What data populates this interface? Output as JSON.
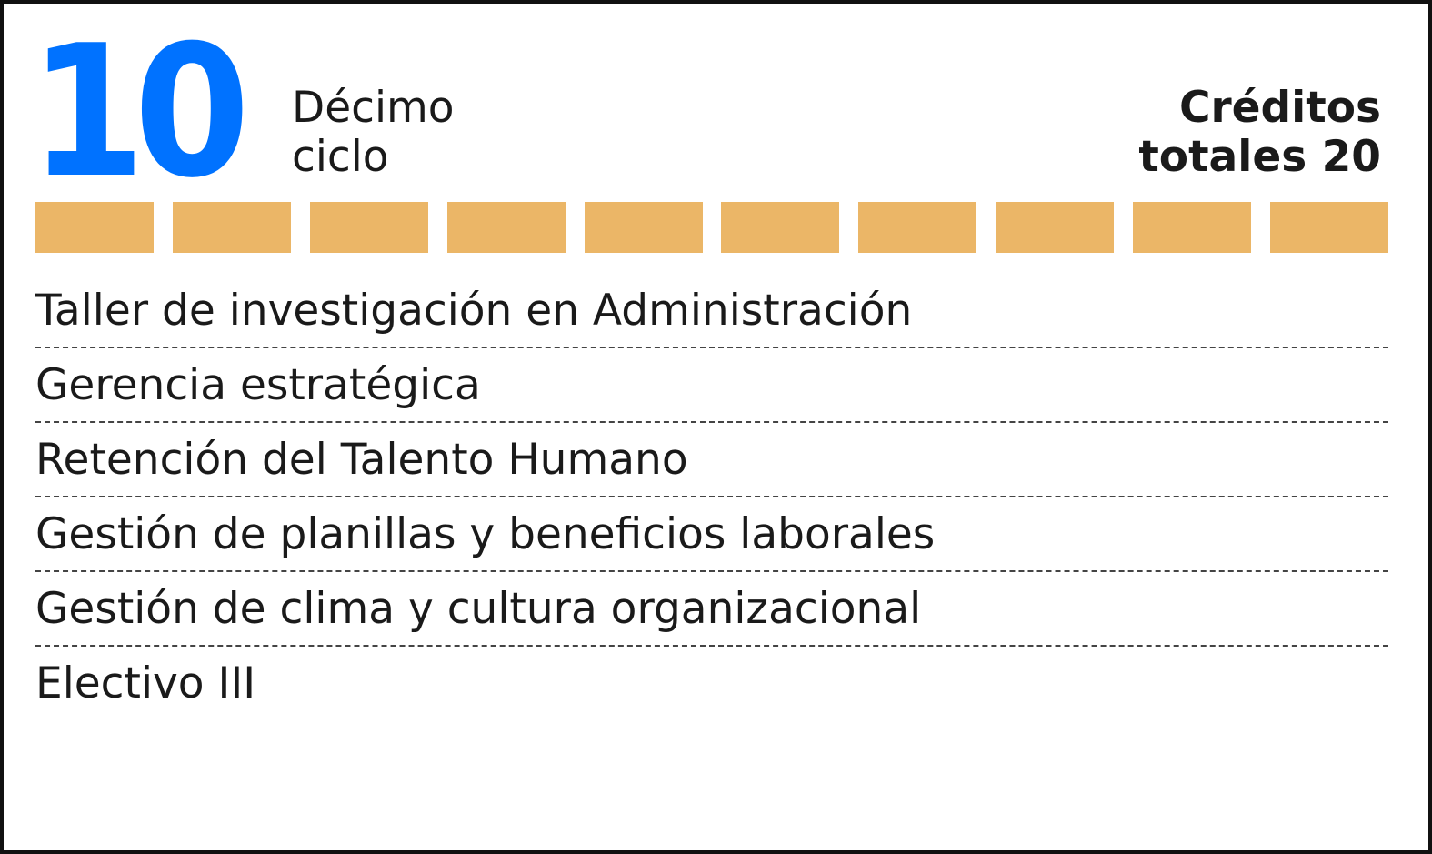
{
  "cycle": {
    "number": "10",
    "name_line1": "Décimo",
    "name_line2": "ciclo"
  },
  "credits": {
    "line1": "Créditos",
    "line2": "totales 20"
  },
  "colors": {
    "number": "#0072ff",
    "bar": "#ebb667",
    "text": "#1a1a1a",
    "border": "#111111"
  },
  "credit_bars": {
    "count": 10,
    "filled": 10
  },
  "courses": [
    "Taller de investigación en Administración",
    "Gerencia estratégica",
    "Retención del Talento Humano",
    "Gestión de planillas y beneficios laborales",
    "Gestión de clima y cultura organizacional",
    "Electivo III"
  ]
}
